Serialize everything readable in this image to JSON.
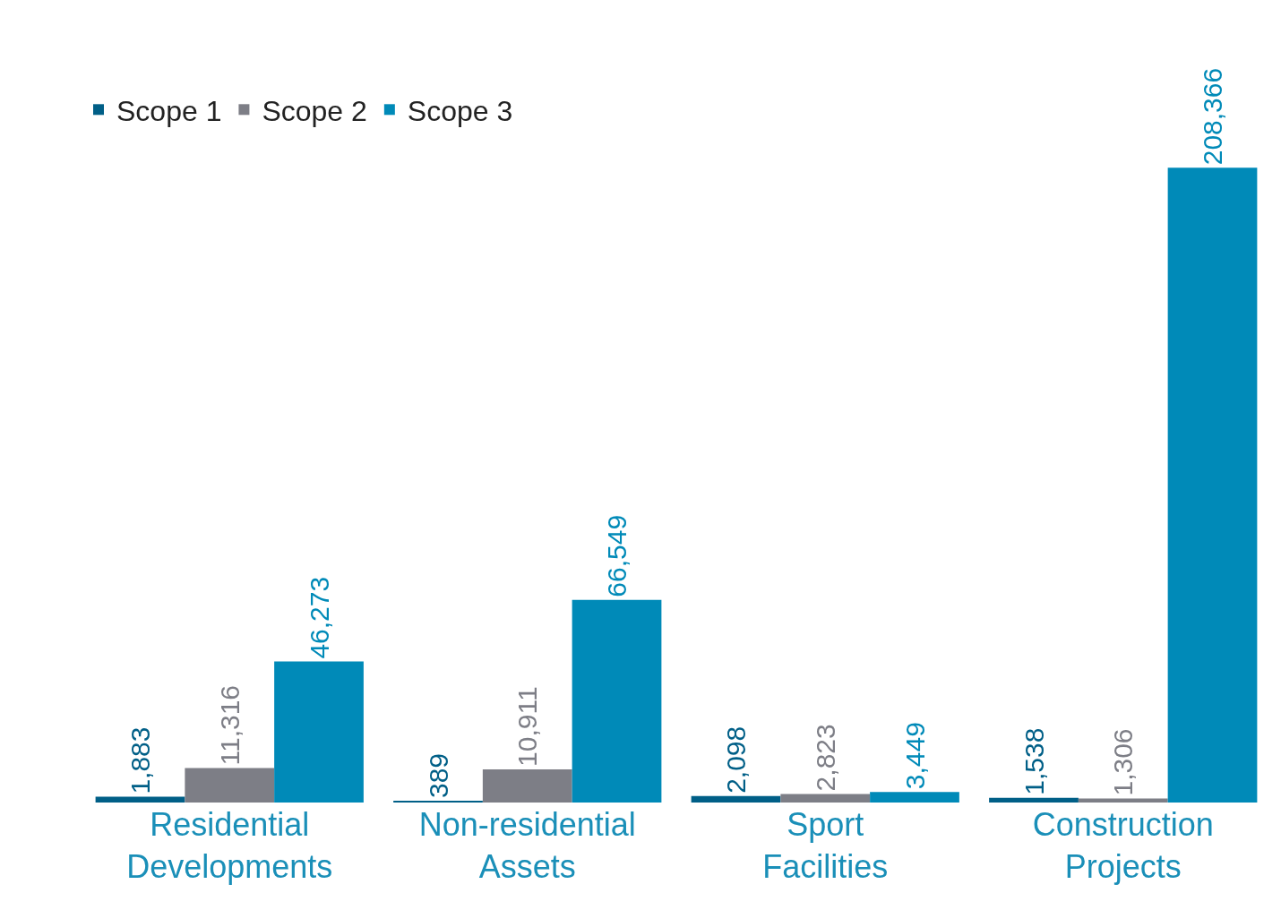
{
  "chart_data": {
    "type": "bar",
    "categories": [
      "Residential Developments",
      "Non-residential Assets",
      "Sport Facilities",
      "Construction Projects"
    ],
    "series": [
      {
        "name": "Scope 1",
        "color": "#005f87",
        "values": [
          1883,
          389,
          2098,
          1538
        ],
        "value_labels": [
          "1,883",
          "389",
          "2,098",
          "1,538"
        ]
      },
      {
        "name": "Scope 2",
        "color": "#7d7e86",
        "values": [
          11316,
          10911,
          2823,
          1306
        ],
        "value_labels": [
          "11,316",
          "10,911",
          "2,823",
          "1,306"
        ]
      },
      {
        "name": "Scope 3",
        "color": "#008ab8",
        "values": [
          46273,
          66549,
          3449,
          208366
        ],
        "value_labels": [
          "46,273",
          "66,549",
          "3,449",
          "208,366"
        ]
      }
    ],
    "legend": "top left"
  }
}
